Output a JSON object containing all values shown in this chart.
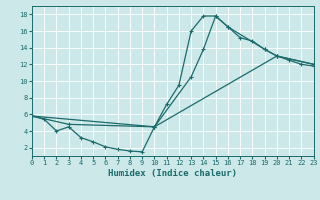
{
  "bg_color": "#cde8e8",
  "grid_color": "#b0d4d4",
  "line_color": "#1a6b6b",
  "xlabel": "Humidex (Indice chaleur)",
  "xlim": [
    0,
    23
  ],
  "ylim": [
    1,
    19
  ],
  "xticks": [
    0,
    1,
    2,
    3,
    4,
    5,
    6,
    7,
    8,
    9,
    10,
    11,
    12,
    13,
    14,
    15,
    16,
    17,
    18,
    19,
    20,
    21,
    22,
    23
  ],
  "yticks": [
    2,
    4,
    6,
    8,
    10,
    12,
    14,
    16,
    18
  ],
  "line1_x": [
    0,
    1,
    2,
    3,
    4,
    5,
    6,
    7,
    8,
    9,
    10,
    11,
    12,
    13,
    14,
    15,
    16,
    17,
    18,
    19,
    20,
    21,
    22,
    23
  ],
  "line1_y": [
    5.8,
    5.4,
    4.0,
    4.5,
    3.2,
    2.7,
    2.1,
    1.8,
    1.6,
    1.5,
    4.5,
    7.2,
    9.5,
    16.0,
    17.8,
    17.8,
    16.5,
    15.2,
    14.8,
    13.8,
    13.0,
    12.5,
    12.0,
    11.8
  ],
  "line2_x": [
    0,
    3,
    10,
    13,
    14,
    15,
    16,
    19,
    20,
    23
  ],
  "line2_y": [
    5.8,
    4.8,
    4.5,
    10.5,
    13.8,
    17.8,
    16.5,
    13.8,
    13.0,
    12.0
  ],
  "line3_x": [
    0,
    10,
    20,
    23
  ],
  "line3_y": [
    5.8,
    4.5,
    13.0,
    12.0
  ],
  "markersize": 2.5,
  "linewidth": 0.9,
  "tick_fontsize": 5.0,
  "xlabel_fontsize": 6.5
}
